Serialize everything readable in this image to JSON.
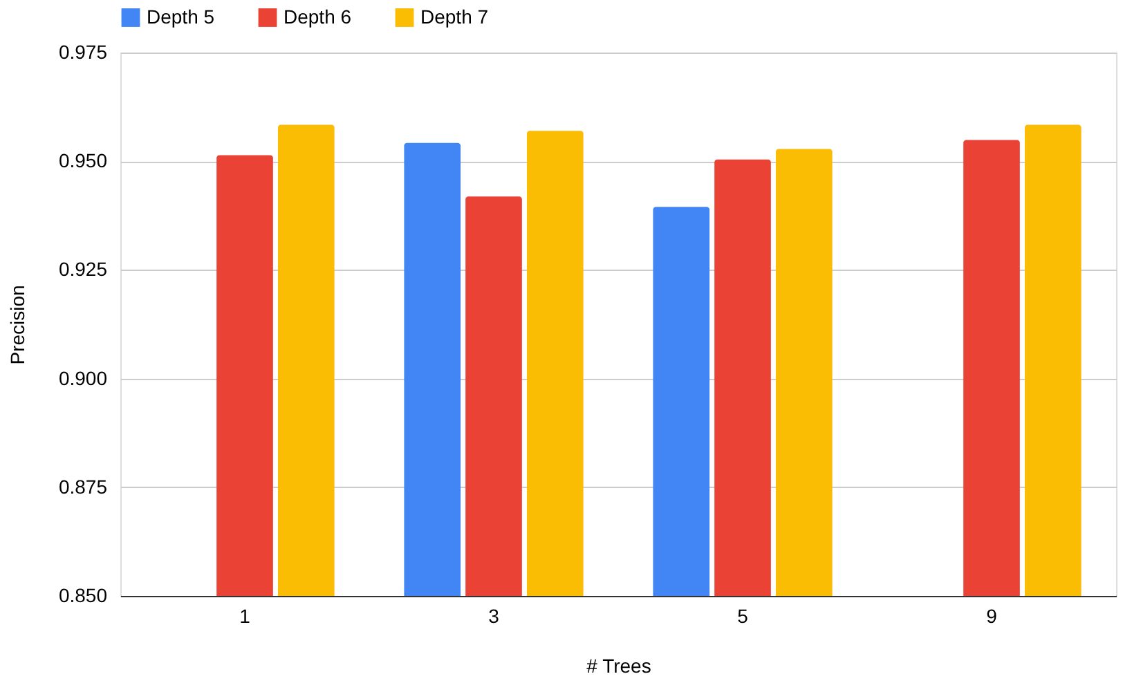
{
  "chart_data": {
    "type": "bar",
    "xlabel": "# Trees",
    "ylabel": "Precision",
    "categories": [
      "1",
      "3",
      "5",
      "9"
    ],
    "series": [
      {
        "name": "Depth 5",
        "color": "#4285f4",
        "values": [
          null,
          0.9542,
          0.9395,
          null
        ]
      },
      {
        "name": "Depth 6",
        "color": "#ea4335",
        "values": [
          0.9514,
          0.9419,
          0.9504,
          0.9549
        ]
      },
      {
        "name": "Depth 7",
        "color": "#fbbc04",
        "values": [
          0.9584,
          0.957,
          0.9528,
          0.9584
        ]
      }
    ],
    "ylim": [
      0.85,
      0.975
    ],
    "yticks": [
      {
        "value": 0.85,
        "label": "0.850"
      },
      {
        "value": 0.875,
        "label": "0.875"
      },
      {
        "value": 0.9,
        "label": "0.900"
      },
      {
        "value": 0.925,
        "label": "0.925"
      },
      {
        "value": 0.95,
        "label": "0.950"
      },
      {
        "value": 0.975,
        "label": "0.975"
      }
    ],
    "grid": "y",
    "legend": "top"
  }
}
